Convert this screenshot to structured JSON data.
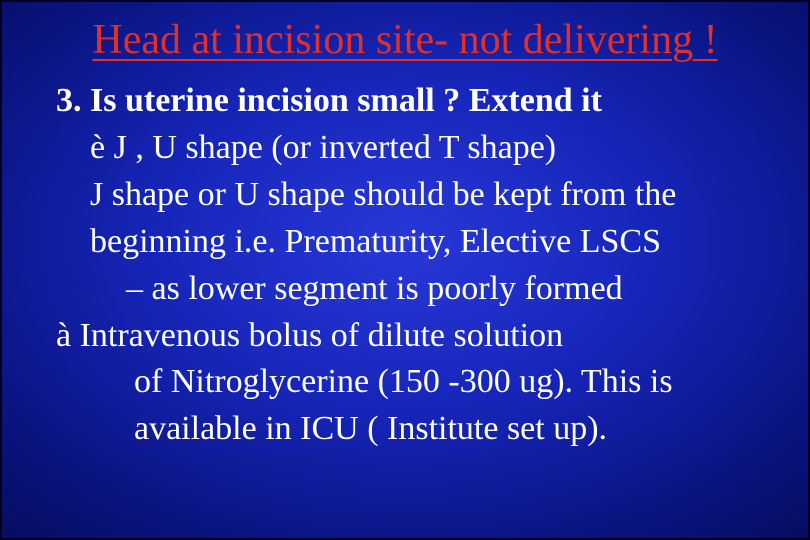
{
  "slide": {
    "background_center_color": "#2838d8",
    "background_edge_color": "#020640",
    "border_color": "#000020",
    "title": {
      "text": "Head at incision site- not delivering !",
      "color": "#e03028",
      "fontsize": 42,
      "underline": true,
      "font_family": "Times New Roman"
    },
    "body": {
      "color": "#ffffff",
      "fontsize": 34,
      "font_family": "Times New Roman",
      "lines": {
        "q": "3. Is uterine incision small ? Extend it",
        "l1": "è J , U shape (or inverted T shape)",
        "l2": "J shape or U shape should be kept from the",
        "l3": "beginning i.e. Prematurity, Elective LSCS",
        "l4": "–  as lower segment is poorly formed",
        "l5": "à  Intravenous bolus of dilute solution",
        "l6": "of Nitroglycerine (150 -300 ug). This is",
        "l7": "available in ICU ( Institute set up)."
      }
    }
  }
}
